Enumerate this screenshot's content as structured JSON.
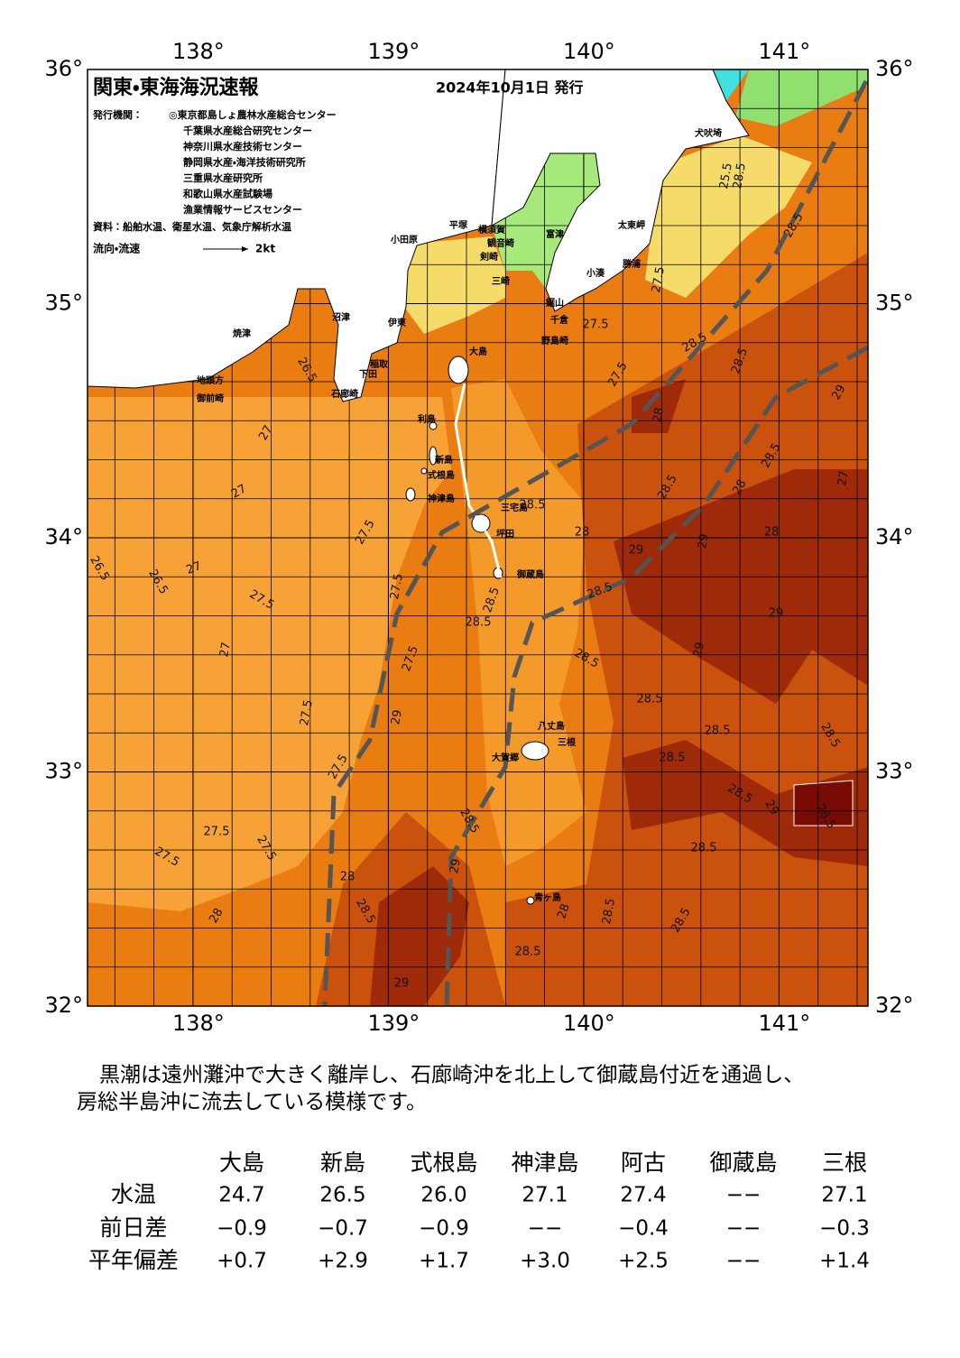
{
  "map": {
    "title": "関東・東海海況速報",
    "date": "2024年10月1日 発行",
    "issuer_label": "発行機関：",
    "issuers": [
      "◎東京都島しょ農林水産総合センター",
      "千葉県水産総合研究センター",
      "神奈川県水産技術センター",
      "静岡県水産・海洋技術研究所",
      "三重県水産研究所",
      "和歌山県水産試験場",
      "漁業情報サービスセンター"
    ],
    "source": "資料：船舶水温、衛星水温、気象庁解析水温",
    "legend_label": "流向・流速",
    "legend_scale": "2kt",
    "lon_ticks": [
      {
        "value": 138,
        "label": "138°"
      },
      {
        "value": 139,
        "label": "139°"
      },
      {
        "value": 140,
        "label": "140°"
      },
      {
        "value": 141,
        "label": "141°"
      }
    ],
    "lat_ticks": [
      {
        "value": 36,
        "label": "36°"
      },
      {
        "value": 35,
        "label": "35°"
      },
      {
        "value": 34,
        "label": "34°"
      },
      {
        "value": 33,
        "label": "33°"
      },
      {
        "value": 32,
        "label": "32°"
      }
    ],
    "places": [
      "犬吠埼",
      "太東岬",
      "勝浦",
      "小湊",
      "鋸山",
      "千倉",
      "野島崎",
      "富津",
      "横須賀",
      "観音崎",
      "剣崎",
      "三崎",
      "平塚",
      "小田原",
      "沼津",
      "伊東",
      "稲取",
      "下田",
      "石廊崎",
      "焼津",
      "地頭方",
      "御前崎",
      "大島",
      "利島",
      "新島",
      "式根島",
      "神津島",
      "三宅島",
      "坪田",
      "御蔵島",
      "八丈島",
      "三根",
      "大賀郷",
      "青ヶ島"
    ],
    "contours": [
      26.5,
      27,
      27,
      27.5,
      26.5,
      26.5,
      27,
      27.5,
      27,
      27.5,
      27.5,
      27.5,
      29,
      27.5,
      27.5,
      27.5,
      27.5,
      28,
      28,
      28.5,
      29,
      28.5,
      29,
      28.5,
      28,
      28.5,
      28.5,
      28.5,
      28.5,
      28.5,
      28.5,
      28.5,
      29,
      29,
      28,
      29,
      29,
      28.5,
      29,
      28.5,
      28.5,
      28.5,
      28,
      28.5,
      28.5,
      28.5,
      28,
      27.5,
      27.5,
      28.5,
      28.5,
      29,
      28.5,
      28,
      28.5,
      27,
      27.5,
      28.5,
      25.5,
      28.5
    ]
  },
  "summary": [
    "黒潮は遠州灘沖で大きく離岸し、石廊崎沖を北上して御蔵島付近を通過し、",
    "房総半島沖に流去している模様です。"
  ],
  "table": {
    "columns": [
      "大島",
      "新島",
      "式根島",
      "神津島",
      "阿古",
      "御蔵島",
      "三根"
    ],
    "rows": [
      [
        "水温",
        "24.7",
        "26.5",
        "26.0",
        "27.1",
        "27.4",
        "−−",
        "27.1"
      ],
      [
        "前日差",
        "−0.9",
        "−0.7",
        "−0.9",
        "−−",
        "−0.4",
        "−−",
        "−0.3"
      ],
      [
        "平年偏差",
        "+0.7",
        "+2.9",
        "+1.7",
        "+3.0",
        "+2.5",
        "−−",
        "+1.4"
      ]
    ]
  }
}
